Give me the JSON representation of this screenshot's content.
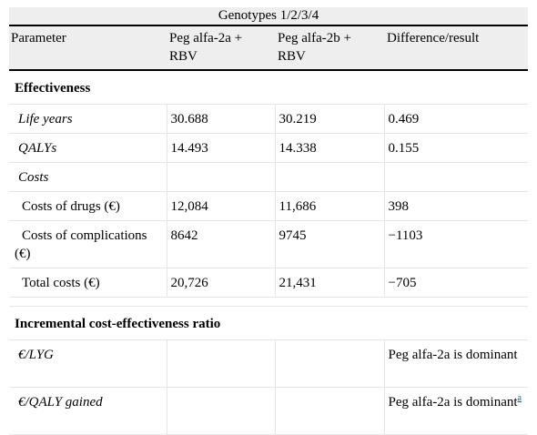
{
  "table": {
    "caption": "Genotypes 1/2/3/4",
    "headers": [
      "Parameter",
      "Peg alfa-2a + RBV",
      "Peg alfa-2b + RBV",
      "Difference/result"
    ],
    "sections": {
      "effectiveness": "Effectiveness",
      "icer": "Incremental cost-effectiveness ratio"
    },
    "rows": {
      "life_years": {
        "label": "Life years",
        "a": "30.688",
        "b": "30.219",
        "diff": "0.469"
      },
      "qalys": {
        "label": "QALYs",
        "a": "14.493",
        "b": "14.338",
        "diff": "0.155"
      },
      "costs": {
        "label": "Costs"
      },
      "costs_drugs": {
        "label": "Costs of drugs (€)",
        "a": "12,084",
        "b": "11,686",
        "diff": "398"
      },
      "costs_complications": {
        "label": "Costs of complications (€)",
        "a": "8642",
        "b": "9745",
        "diff": "−1103"
      },
      "total_costs": {
        "label": "Total costs (€)",
        "a": "20,726",
        "b": "21,431",
        "diff": "−705"
      },
      "per_lyg": {
        "label": "€/LYG",
        "diff": "Peg alfa-2a is dominant"
      },
      "per_qaly": {
        "label": "€/QALY gained",
        "diff": "Peg alfa-2a is dominant",
        "footnote": "a"
      }
    }
  }
}
